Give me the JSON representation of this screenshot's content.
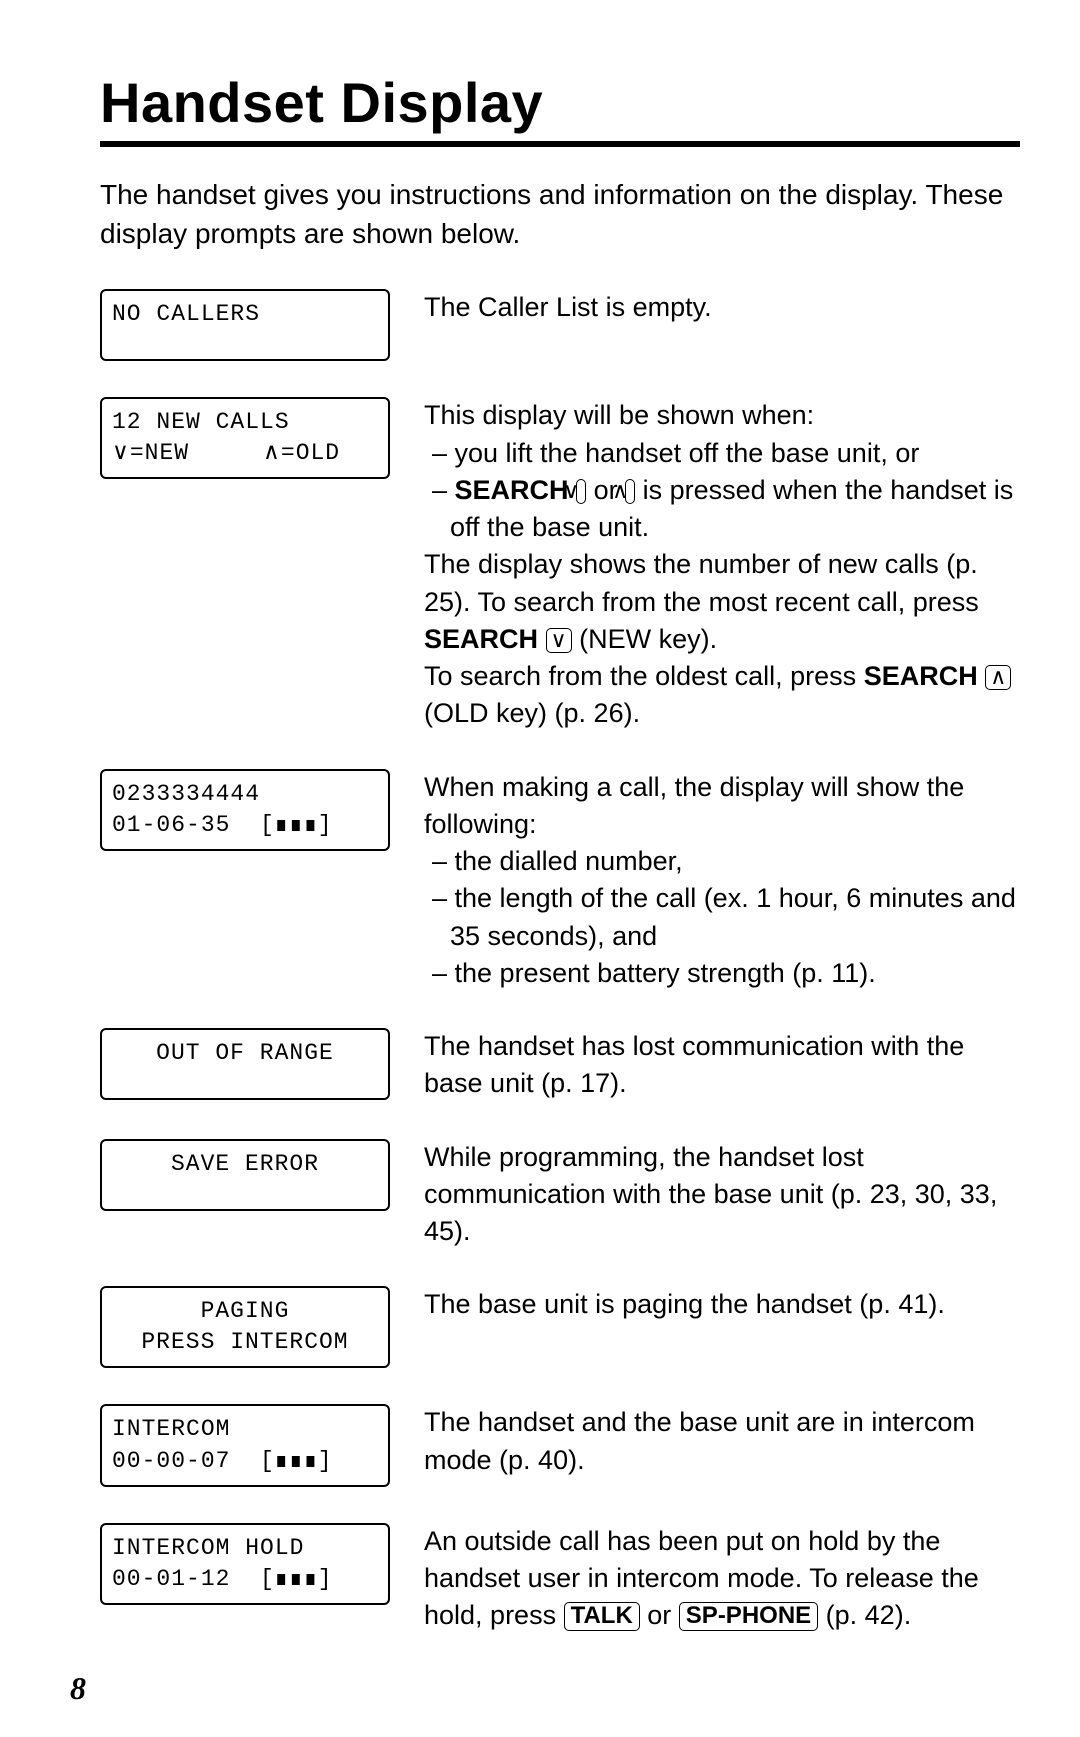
{
  "title": "Handset Display",
  "intro": "The handset gives you instructions and information on the display. These display prompts are shown below.",
  "page_number": "8",
  "rows": [
    {
      "lcd": {
        "line1": "NO CALLERS",
        "line2": "",
        "align": "left"
      },
      "desc_html": "The Caller List is empty."
    },
    {
      "lcd": {
        "line1": "12 NEW CALLS",
        "line2": "∨=NEW     ∧=OLD",
        "align": "left"
      },
      "desc_html": "This display will be shown when:<br><span class='indent'>– you lift the handset off the base unit, or</span><span class='indent'>– <span class='b'>SEARCH</span> <span class='keycap'>∨</span> or <span class='keycap'>∧</span> is pressed when the handset is off the base unit.</span>The display shows the number of new calls (p. 25). To search from the most recent call, press <span class='b'>SEARCH</span> <span class='keycap'>∨</span> (<span class='sc'>NEW</span> key).<br>To search from the oldest call, press <span class='b'>SEARCH</span> <span class='keycap'>∧</span> (<span class='sc'>OLD</span> key) (p. 26)."
    },
    {
      "lcd": {
        "line1": "0233334444",
        "line2": "01-06-35  <span class='battbox'>[∎∎∎]</span>",
        "align": "left"
      },
      "desc_html": "When making a call, the display will show the following:<br><span class='indent'>– the dialled number,</span><span class='indent'>– the length of the call (ex. 1 hour, 6 minutes and 35 seconds), and</span><span class='indent'>– the present battery strength (p. 11).</span>"
    },
    {
      "lcd": {
        "line1": "OUT OF RANGE",
        "line2": "",
        "align": "center"
      },
      "desc_html": "The handset has lost communication with the base unit (p. 17)."
    },
    {
      "lcd": {
        "line1": "SAVE ERROR",
        "line2": "",
        "align": "center"
      },
      "desc_html": "While programming, the handset lost communication with the base unit (p. 23, 30, 33, 45)."
    },
    {
      "lcd": {
        "line1": "PAGING",
        "line2": "PRESS INTERCOM",
        "align": "center"
      },
      "desc_html": "The base unit is paging the handset (p. 41)."
    },
    {
      "lcd": {
        "line1": "INTERCOM",
        "line2": "00-00-07  <span class='battbox'>[∎∎∎]</span>",
        "align": "left"
      },
      "desc_html": "The handset and the base unit are in intercom mode (p. 40)."
    },
    {
      "lcd": {
        "line1": "INTERCOM HOLD",
        "line2": "00-01-12  <span class='battbox'>[∎∎∎]</span>",
        "align": "left"
      },
      "desc_html": "An outside call has been put on hold by the handset user in intercom mode. To release the hold, press <span class='keybtn'>TALK</span> or <span class='keybtn'>SP-PHONE</span> (p. 42)."
    }
  ]
}
